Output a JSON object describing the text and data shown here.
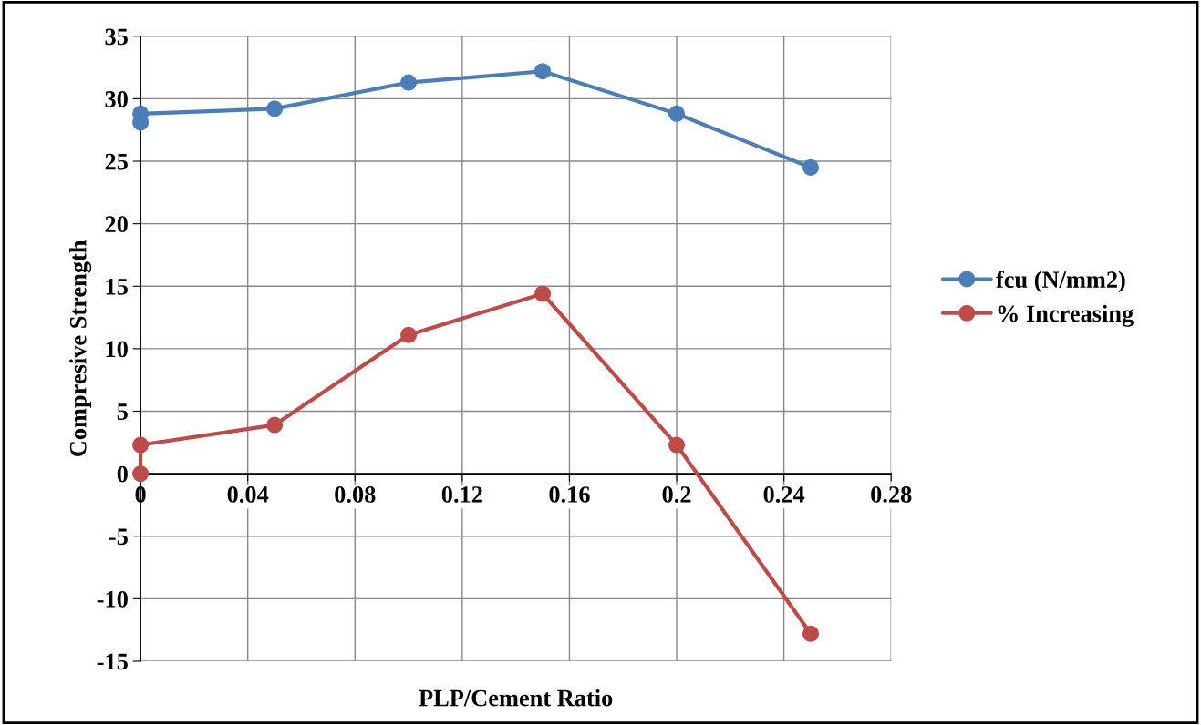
{
  "chart_data": {
    "type": "line",
    "xlabel": "PLP/Cement Ratio",
    "ylabel": "Compresive Strength",
    "xlim": [
      0,
      0.28
    ],
    "xticks": [
      0,
      0.04,
      0.08,
      0.12,
      0.16,
      0.2,
      0.24,
      0.28
    ],
    "ylim": [
      -15,
      35
    ],
    "yticks": [
      -15,
      -10,
      -5,
      0,
      5,
      10,
      15,
      20,
      25,
      30,
      35
    ],
    "grid": true,
    "legend": "right",
    "marker": "circle",
    "line_style": "solid",
    "series": [
      {
        "name": "fcu (N/mm2)",
        "color": "#4a7ebb",
        "x": [
          0,
          0,
          0.05,
          0.1,
          0.15,
          0.2,
          0.25
        ],
        "values": [
          28.1,
          28.8,
          29.2,
          31.3,
          32.2,
          28.8,
          24.5
        ]
      },
      {
        "name": "% Increasing",
        "color": "#be4b48",
        "x": [
          0,
          0,
          0.05,
          0.1,
          0.15,
          0.2,
          0.25
        ],
        "values": [
          0,
          2.3,
          3.9,
          11.1,
          14.4,
          2.3,
          -12.8
        ]
      }
    ]
  }
}
